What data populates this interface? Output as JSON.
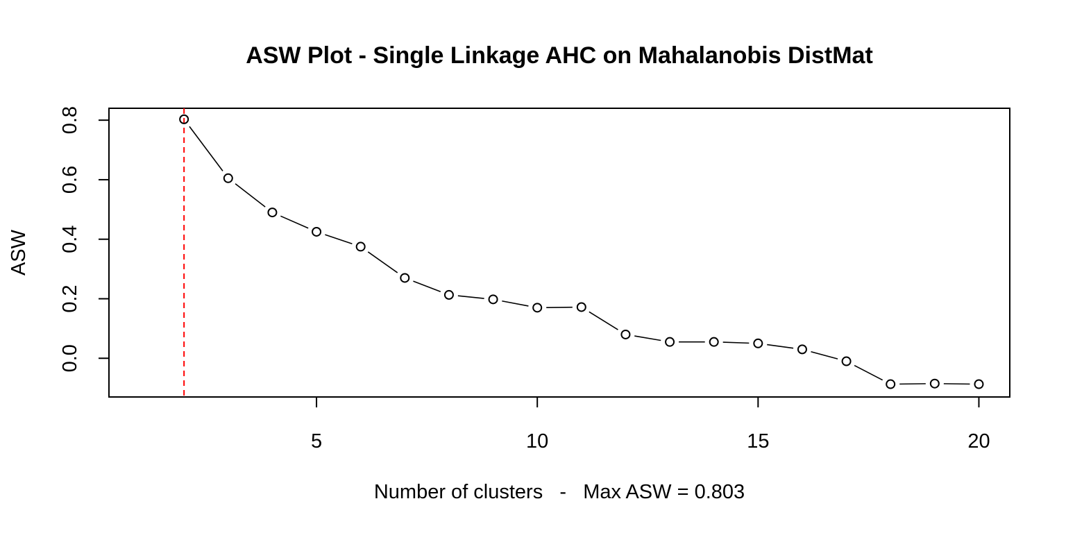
{
  "chart_data": {
    "type": "line",
    "title": "ASW Plot - Single Linkage AHC on Mahalanobis DistMat",
    "xlabel": "Number of clusters   -   Max ASW = 0.803",
    "ylabel": "ASW",
    "xlim": [
      0.3,
      20.7
    ],
    "ylim": [
      -0.13,
      0.84
    ],
    "x_ticks": [
      5,
      10,
      15,
      20
    ],
    "x_tick_labels": [
      "5",
      "10",
      "15",
      "20"
    ],
    "y_ticks": [
      0.0,
      0.2,
      0.4,
      0.6,
      0.8
    ],
    "y_tick_labels": [
      "0.0",
      "0.2",
      "0.4",
      "0.6",
      "0.8"
    ],
    "grid": false,
    "series": [
      {
        "x": [
          2,
          3,
          4,
          5,
          6,
          7,
          8,
          9,
          10,
          11,
          12,
          13,
          14,
          15,
          16,
          17,
          18,
          19,
          20
        ],
        "values": [
          0.803,
          0.605,
          0.49,
          0.425,
          0.375,
          0.27,
          0.213,
          0.198,
          0.17,
          0.172,
          0.08,
          0.055,
          0.055,
          0.05,
          0.03,
          -0.01,
          -0.087,
          -0.085,
          -0.087
        ],
        "style": "both",
        "color": "#000000"
      }
    ],
    "max_marker": {
      "x": 2,
      "color": "#ff0000",
      "style": "dashed"
    }
  }
}
